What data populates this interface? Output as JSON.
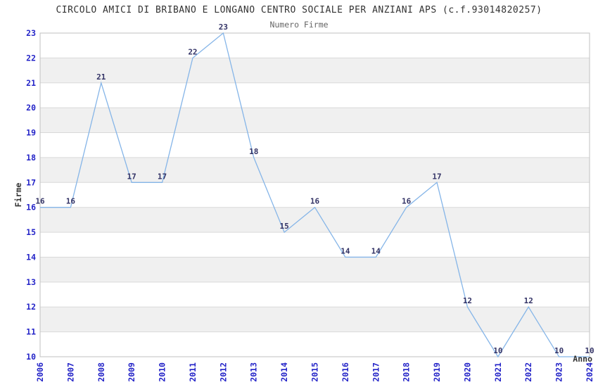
{
  "chart_data": {
    "type": "line",
    "title": "CIRCOLO AMICI DI BRIBANO E LONGANO CENTRO SOCIALE PER ANZIANI APS (c.f.93014820257)",
    "subtitle": "Numero Firme",
    "xlabel": "Anno",
    "ylabel": "Firme",
    "x": [
      2006,
      2007,
      2008,
      2009,
      2010,
      2011,
      2012,
      2013,
      2014,
      2015,
      2016,
      2017,
      2018,
      2019,
      2020,
      2021,
      2022,
      2023,
      2024
    ],
    "values": [
      16,
      16,
      21,
      17,
      17,
      22,
      23,
      18,
      15,
      16,
      14,
      14,
      16,
      17,
      12,
      10,
      12,
      10,
      10
    ],
    "ylim": [
      10,
      23
    ],
    "ytick_step": 1,
    "grid": "horizontal-bands",
    "legend_position": "none",
    "colors": {
      "line": "#85b5e8",
      "point_label": "#333366",
      "tick_label": "#2424c8",
      "band": "#f0f0f0",
      "band_alt": "#ffffff",
      "gridline": "#d9d9d9",
      "border": "#c0c0c0",
      "title": "#333333",
      "subtitle": "#666666",
      "axis_title": "#333333",
      "background": "#ffffff"
    }
  }
}
